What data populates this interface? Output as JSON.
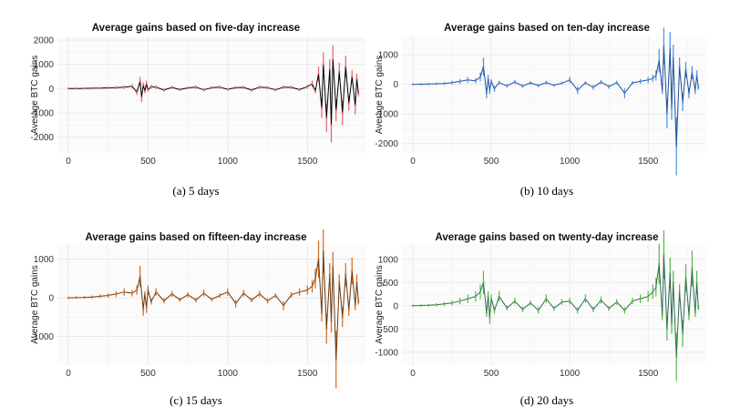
{
  "chart_data": [
    {
      "type": "line",
      "title": "Average gains based on five-day increase",
      "ylabel": "Average BTC gains",
      "xlabel": "",
      "caption": "(a)  5 days",
      "xlim": [
        0,
        1830
      ],
      "ylim": [
        -2500,
        2000
      ],
      "x_ticks": [
        0,
        500,
        1000,
        1500
      ],
      "y_ticks": [
        -2000,
        -1000,
        0,
        1000,
        2000
      ],
      "line_color": "#000000",
      "error_color": "#e8606a",
      "series": [
        {
          "name": "Average BTC gains",
          "x": [
            0,
            50,
            100,
            150,
            200,
            250,
            300,
            350,
            400,
            430,
            450,
            460,
            470,
            480,
            490,
            500,
            520,
            550,
            600,
            650,
            700,
            750,
            800,
            850,
            900,
            950,
            1000,
            1050,
            1100,
            1150,
            1200,
            1250,
            1300,
            1350,
            1400,
            1450,
            1500,
            1530,
            1550,
            1570,
            1590,
            1600,
            1620,
            1640,
            1650,
            1660,
            1680,
            1700,
            1720,
            1740,
            1760,
            1780,
            1800,
            1810,
            1820
          ],
          "y": [
            0,
            5,
            10,
            15,
            20,
            30,
            40,
            60,
            100,
            -150,
            300,
            -350,
            150,
            -100,
            200,
            -50,
            80,
            60,
            -60,
            50,
            -40,
            30,
            60,
            -50,
            40,
            60,
            -30,
            40,
            50,
            -60,
            60,
            40,
            -50,
            60,
            50,
            -40,
            80,
            200,
            -100,
            600,
            -800,
            1000,
            -1200,
            800,
            -1500,
            1200,
            -900,
            700,
            -1000,
            900,
            -600,
            500,
            -700,
            400,
            -200
          ]
        }
      ]
    },
    {
      "type": "line",
      "title": "Average gains based on ten-day increase",
      "ylabel": "Average BTC gains",
      "xlabel": "",
      "caption": "(b)  10 days",
      "xlim": [
        0,
        1830
      ],
      "ylim": [
        -2200,
        1500
      ],
      "x_ticks": [
        0,
        500,
        1000,
        1500
      ],
      "y_ticks": [
        -2000,
        -1000,
        0,
        1000
      ],
      "line_color": "#1f4f9a",
      "error_color": "#4a90e2",
      "series": [
        {
          "name": "Average BTC gains",
          "x": [
            0,
            50,
            100,
            150,
            200,
            250,
            300,
            350,
            400,
            430,
            450,
            470,
            480,
            490,
            500,
            520,
            550,
            600,
            650,
            700,
            750,
            800,
            850,
            900,
            950,
            1000,
            1050,
            1100,
            1150,
            1200,
            1250,
            1300,
            1350,
            1400,
            1450,
            1500,
            1530,
            1550,
            1570,
            1590,
            1600,
            1620,
            1640,
            1650,
            1660,
            1680,
            1700,
            1720,
            1740,
            1760,
            1780,
            1800,
            1810,
            1820
          ],
          "y": [
            0,
            5,
            10,
            20,
            30,
            60,
            100,
            150,
            120,
            250,
            600,
            -300,
            200,
            -200,
            100,
            -150,
            60,
            -50,
            80,
            -60,
            50,
            -40,
            60,
            -30,
            40,
            150,
            -200,
            50,
            -100,
            80,
            -80,
            60,
            -300,
            50,
            100,
            150,
            200,
            300,
            800,
            -200,
            1300,
            -1000,
            1200,
            -800,
            900,
            -2100,
            600,
            -600,
            500,
            -300,
            400,
            -200,
            300,
            -100
          ]
        }
      ]
    },
    {
      "type": "line",
      "title": "Average gains based on fifteen-day increase",
      "ylabel": "Average BTC gains",
      "xlabel": "",
      "caption": "(c)  15 days",
      "xlim": [
        0,
        1830
      ],
      "ylim": [
        -1650,
        1300
      ],
      "x_ticks": [
        0,
        500,
        1000,
        1500
      ],
      "y_ticks": [
        -1000,
        0,
        1000
      ],
      "line_color": "#6b3a10",
      "error_color": "#d2691e",
      "series": [
        {
          "name": "Average BTC gains",
          "x": [
            0,
            50,
            100,
            150,
            200,
            250,
            300,
            350,
            400,
            430,
            450,
            470,
            480,
            490,
            500,
            520,
            550,
            600,
            650,
            700,
            750,
            800,
            850,
            900,
            950,
            1000,
            1050,
            1100,
            1150,
            1200,
            1250,
            1300,
            1350,
            1400,
            1450,
            1500,
            1530,
            1550,
            1570,
            1590,
            1600,
            1620,
            1640,
            1650,
            1660,
            1680,
            1700,
            1720,
            1740,
            1760,
            1780,
            1800,
            1810,
            1820
          ],
          "y": [
            0,
            5,
            10,
            20,
            40,
            60,
            100,
            150,
            120,
            200,
            550,
            -300,
            100,
            -250,
            200,
            -100,
            150,
            -80,
            100,
            -50,
            80,
            -60,
            120,
            -40,
            60,
            150,
            -150,
            120,
            -60,
            100,
            -80,
            60,
            -200,
            80,
            150,
            200,
            300,
            500,
            1000,
            -400,
            1200,
            -800,
            600,
            -600,
            800,
            -1600,
            400,
            -500,
            600,
            -300,
            700,
            -200,
            400,
            -100
          ]
        }
      ]
    },
    {
      "type": "line",
      "title": "Average gains based on twenty-day increase",
      "ylabel": "Average BTC gains",
      "xlabel": "",
      "caption": "(d)  20 days",
      "xlim": [
        0,
        1830
      ],
      "ylim": [
        -1200,
        1250
      ],
      "x_ticks": [
        0,
        500,
        1000,
        1500
      ],
      "y_ticks": [
        -1000,
        -500,
        0,
        500,
        1000
      ],
      "line_color": "#2e6b50",
      "error_color": "#57b848",
      "series": [
        {
          "name": "Average BTC gains",
          "x": [
            0,
            50,
            100,
            150,
            200,
            250,
            300,
            350,
            400,
            430,
            450,
            470,
            480,
            490,
            500,
            520,
            550,
            600,
            650,
            700,
            750,
            800,
            850,
            900,
            950,
            1000,
            1050,
            1100,
            1150,
            1200,
            1250,
            1300,
            1350,
            1400,
            1450,
            1500,
            1530,
            1550,
            1570,
            1590,
            1600,
            1620,
            1640,
            1650,
            1660,
            1680,
            1700,
            1720,
            1740,
            1760,
            1780,
            1800,
            1810,
            1820
          ],
          "y": [
            0,
            5,
            10,
            20,
            40,
            60,
            100,
            150,
            200,
            300,
            500,
            -150,
            200,
            -250,
            150,
            -100,
            200,
            -50,
            100,
            -80,
            60,
            -100,
            150,
            -60,
            80,
            100,
            -100,
            150,
            -80,
            120,
            -60,
            80,
            -100,
            100,
            150,
            200,
            300,
            400,
            900,
            -200,
            1100,
            -500,
            700,
            -400,
            500,
            -1100,
            300,
            -600,
            600,
            -200,
            800,
            -150,
            500,
            -50
          ]
        }
      ]
    }
  ]
}
